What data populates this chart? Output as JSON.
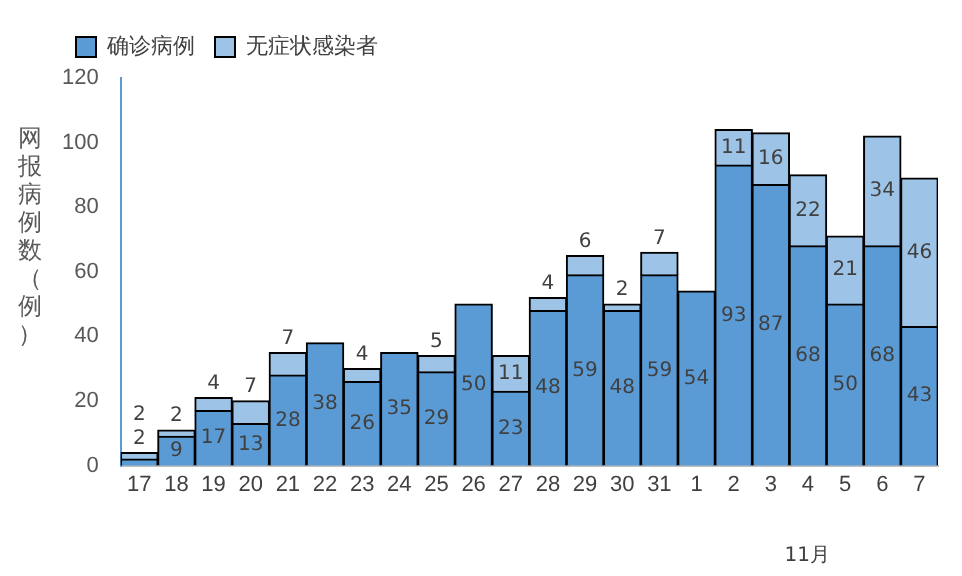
{
  "chart_data": {
    "type": "bar",
    "stacked": true,
    "ylabel": "网报病例数（例）",
    "categories": [
      "17",
      "18",
      "19",
      "20",
      "21",
      "22",
      "23",
      "24",
      "25",
      "26",
      "27",
      "28",
      "29",
      "30",
      "31",
      "1",
      "2",
      "3",
      "4",
      "5",
      "6",
      "7"
    ],
    "series": [
      {
        "name": "确诊病例",
        "color": "#5b9bd5",
        "values": [
          2,
          9,
          17,
          13,
          28,
          38,
          26,
          35,
          29,
          50,
          23,
          48,
          59,
          48,
          59,
          54,
          93,
          87,
          68,
          50,
          68,
          43
        ]
      },
      {
        "name": "无症状感染者",
        "color": "#9dc3e6",
        "values": [
          2,
          2,
          4,
          7,
          7,
          null,
          4,
          null,
          5,
          null,
          11,
          4,
          6,
          2,
          7,
          null,
          11,
          16,
          22,
          21,
          34,
          46
        ]
      }
    ],
    "data_labels": true,
    "ylim": [
      0,
      120
    ],
    "yticks": [
      0,
      20,
      40,
      60,
      80,
      100,
      120
    ],
    "grid": false,
    "legend": "top left",
    "annotations": [
      "11月"
    ]
  }
}
